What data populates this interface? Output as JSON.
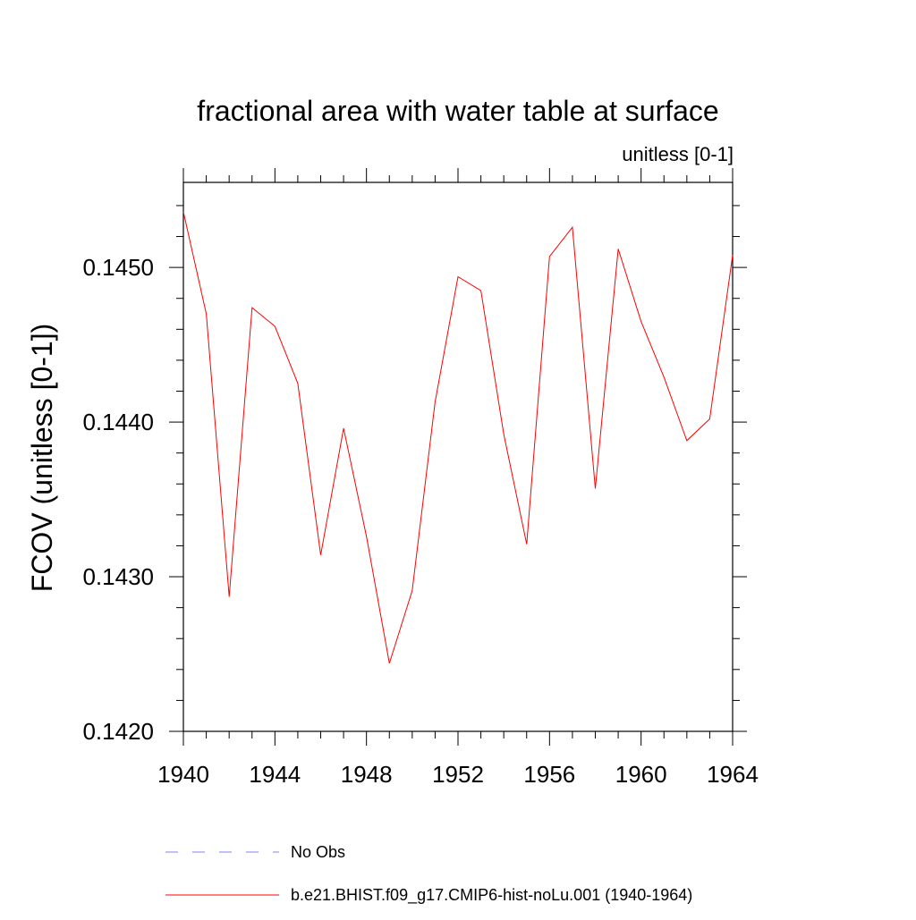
{
  "chart_data": {
    "type": "line",
    "title": "fractional area with water table at surface",
    "subtitle": "unitless [0-1]",
    "ylabel": "FCOV  (unitless [0-1])",
    "xlabel": "",
    "xlim": [
      1940,
      1964
    ],
    "ylim": [
      0.142,
      0.14555
    ],
    "x_ticks": [
      1940,
      1944,
      1948,
      1952,
      1956,
      1960,
      1964
    ],
    "x_tick_labels": [
      "1940",
      "1944",
      "1948",
      "1952",
      "1956",
      "1960",
      "1964"
    ],
    "y_ticks": [
      0.142,
      0.143,
      0.144,
      0.145
    ],
    "y_tick_labels": [
      "0.1420",
      "0.1430",
      "0.1440",
      "0.1450"
    ],
    "grid": false,
    "legend_position": "bottom",
    "series": [
      {
        "name": "b.e21.BHIST.f09_g17.CMIP6-hist-noLu.001 (1940-1964)",
        "color": "#ff0000",
        "style": "solid",
        "x": [
          1940,
          1941,
          1942,
          1943,
          1944,
          1945,
          1946,
          1947,
          1948,
          1949,
          1950,
          1951,
          1952,
          1953,
          1954,
          1955,
          1956,
          1957,
          1958,
          1959,
          1960,
          1961,
          1962,
          1963,
          1964
        ],
        "y": [
          0.14536,
          0.1447,
          0.14287,
          0.14474,
          0.14462,
          0.14425,
          0.14314,
          0.14396,
          0.14326,
          0.14244,
          0.14291,
          0.14413,
          0.14494,
          0.14485,
          0.14392,
          0.14321,
          0.14507,
          0.14526,
          0.14357,
          0.14512,
          0.14465,
          0.14429,
          0.14388,
          0.14402,
          0.14508
        ]
      }
    ],
    "legend": [
      {
        "label": "No Obs",
        "color": "#8080ff",
        "style": "dashed"
      },
      {
        "label": "b.e21.BHIST.f09_g17.CMIP6-hist-noLu.001 (1940-1964)",
        "color": "#ff0000",
        "style": "solid"
      }
    ]
  }
}
